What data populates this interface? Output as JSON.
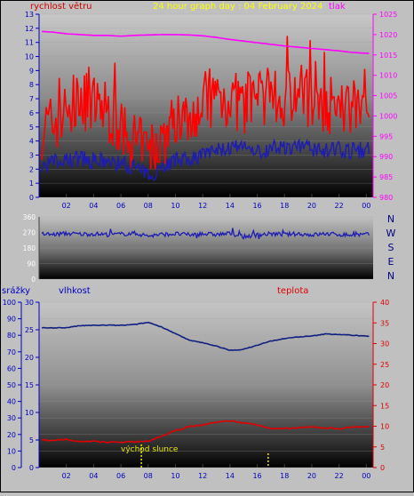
{
  "header": {
    "wind_label": "rychlost větru",
    "title": "24 hour graph day : 04 February 2024",
    "pressure_label": "tlak"
  },
  "compass": {
    "labels": [
      "N",
      "W",
      "S",
      "E",
      "N"
    ]
  },
  "lower_header": {
    "rain_label": "srážky",
    "humidity_label": "vlhkost",
    "temp_label": "teplota"
  },
  "sunrise_label": "východ slunce",
  "colors": {
    "wind": "#ff0000",
    "wind_dir": "#1c1cb4",
    "pressure": "#ff00ff",
    "humidity": "#102080",
    "temperature": "#e00000",
    "title": "#ffff00",
    "axis_blue": "#0000c0",
    "sunrise": "#e8e800"
  },
  "chart_data": [
    {
      "id": "wind_pressure",
      "type": "line",
      "title": "24 hour graph day : 04 February 2024",
      "x_ticks": [
        "02",
        "04",
        "06",
        "08",
        "10",
        "12",
        "14",
        "16",
        "18",
        "20",
        "22",
        "00"
      ],
      "x_range_hours": [
        0,
        24.5
      ],
      "left_axis": {
        "label": "rychlost větru",
        "ylim": [
          0,
          13
        ],
        "ticks": [
          0,
          1,
          2,
          3,
          4,
          5,
          6,
          7,
          8,
          9,
          10,
          11,
          12,
          13
        ]
      },
      "right_axis": {
        "label": "tlak",
        "ylim": [
          980,
          1025
        ],
        "ticks": [
          980,
          985,
          990,
          995,
          1000,
          1005,
          1010,
          1015,
          1020,
          1025
        ]
      },
      "series": [
        {
          "name": "tlak",
          "axis": "right",
          "x": [
            0,
            1,
            2,
            3,
            4,
            5,
            6,
            7,
            8,
            9,
            10,
            11,
            12,
            13,
            14,
            15,
            16,
            17,
            18,
            19,
            20,
            21,
            22,
            23,
            24
          ],
          "y": [
            1020.8,
            1020.6,
            1020.2,
            1020.0,
            1019.8,
            1019.8,
            1019.6,
            1019.8,
            1019.9,
            1020.0,
            1020.0,
            1019.9,
            1019.7,
            1019.3,
            1018.8,
            1018.4,
            1018.0,
            1017.6,
            1017.2,
            1016.9,
            1016.6,
            1016.3,
            1016.0,
            1015.6,
            1015.4
          ]
        },
        {
          "name": "gust",
          "axis": "left",
          "x": [
            0,
            1,
            2,
            3,
            4,
            5,
            6,
            7,
            8,
            9,
            10,
            11,
            12,
            13,
            14,
            15,
            16,
            17,
            18,
            19,
            20,
            21,
            22,
            23,
            24
          ],
          "y": [
            4.8,
            5.2,
            6.0,
            7.0,
            6.5,
            6.2,
            4.5,
            3.8,
            3.2,
            4.0,
            5.5,
            6.0,
            6.8,
            7.2,
            7.0,
            6.5,
            6.8,
            6.6,
            7.2,
            7.5,
            7.0,
            6.8,
            6.0,
            6.5,
            7.8
          ]
        },
        {
          "name": "average",
          "axis": "left",
          "x": [
            0,
            1,
            2,
            3,
            4,
            5,
            6,
            7,
            8,
            9,
            10,
            11,
            12,
            13,
            14,
            15,
            16,
            17,
            18,
            19,
            20,
            21,
            22,
            23,
            24
          ],
          "y": [
            2.0,
            2.5,
            2.6,
            2.8,
            2.6,
            2.5,
            2.4,
            2.2,
            1.5,
            2.2,
            2.6,
            2.7,
            3.0,
            3.3,
            3.5,
            3.4,
            3.2,
            3.5,
            3.6,
            3.5,
            3.5,
            3.3,
            3.4,
            3.3,
            3.4
          ]
        }
      ]
    },
    {
      "id": "wind_direction",
      "type": "line",
      "y_ticks": [
        0,
        90,
        180,
        270,
        360
      ],
      "ylim": [
        0,
        360
      ],
      "series": [
        {
          "name": "direction",
          "x": [
            0,
            1,
            2,
            3,
            4,
            5,
            6,
            7,
            8,
            9,
            10,
            11,
            12,
            13,
            14,
            15,
            16,
            17,
            18,
            19,
            20,
            21,
            22,
            23,
            24
          ],
          "y": [
            262,
            258,
            264,
            260,
            262,
            258,
            260,
            265,
            250,
            258,
            262,
            256,
            262,
            258,
            264,
            245,
            256,
            262,
            258,
            262,
            256,
            262,
            258,
            255,
            258
          ]
        }
      ]
    },
    {
      "id": "rain_humidity_temp",
      "type": "line",
      "x_ticks": [
        "02",
        "04",
        "06",
        "08",
        "10",
        "12",
        "14",
        "16",
        "18",
        "20",
        "22",
        "00"
      ],
      "rain_axis": {
        "label": "srážky",
        "ylim": [
          0,
          100
        ],
        "ticks": [
          0,
          10,
          20,
          30,
          40,
          50,
          60,
          70,
          80,
          90,
          100
        ]
      },
      "humidity_axis": {
        "label": "vlhkost",
        "ylim": [
          0,
          30
        ],
        "ticks": [
          0,
          5,
          10,
          15,
          20,
          25,
          30
        ]
      },
      "temp_axis": {
        "label": "teplota",
        "ylim": [
          0,
          40
        ],
        "ticks": [
          0,
          5,
          10,
          15,
          20,
          25,
          30,
          35,
          40
        ]
      },
      "series": [
        {
          "name": "vlhkost",
          "axis": "rain",
          "x": [
            0,
            1,
            2,
            3,
            4,
            5,
            6,
            7,
            8,
            9,
            10,
            11,
            12,
            13,
            14,
            15,
            16,
            17,
            18,
            19,
            20,
            21,
            22,
            23,
            24
          ],
          "y": [
            84.5,
            84.5,
            84.6,
            85.8,
            86.0,
            86.1,
            86.0,
            86.5,
            87.8,
            85.0,
            81.0,
            77.0,
            75.5,
            73.5,
            70.8,
            71.5,
            74.0,
            76.5,
            78.0,
            79.0,
            79.5,
            80.8,
            80.5,
            80.0,
            79.5
          ]
        },
        {
          "name": "teplota",
          "axis": "temp",
          "x": [
            0,
            1,
            2,
            3,
            4,
            5,
            6,
            7,
            8,
            9,
            10,
            11,
            12,
            13,
            14,
            15,
            16,
            17,
            18,
            19,
            20,
            21,
            22,
            23,
            24
          ],
          "y": [
            6.7,
            6.6,
            6.8,
            6.2,
            6.4,
            6.1,
            6.2,
            6.2,
            6.3,
            7.6,
            8.9,
            9.9,
            10.3,
            11.0,
            11.3,
            10.8,
            10.4,
            9.4,
            9.4,
            9.6,
            9.8,
            9.6,
            9.4,
            9.8,
            9.9
          ]
        }
      ],
      "annotations": [
        {
          "text": "východ slunce",
          "x_hour": 7.5
        }
      ]
    }
  ]
}
